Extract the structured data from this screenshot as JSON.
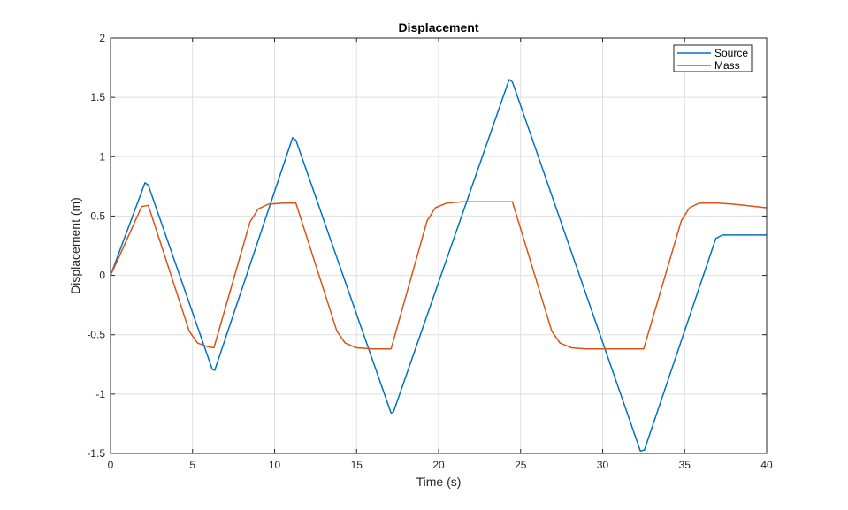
{
  "chart_data": {
    "type": "line",
    "title": "Displacement",
    "xlabel": "Time (s)",
    "ylabel": "Displacement (m)",
    "xlim": [
      0,
      40
    ],
    "ylim": [
      -1.5,
      2
    ],
    "x_ticks": [
      0,
      5,
      10,
      15,
      20,
      25,
      30,
      35,
      40
    ],
    "y_ticks": [
      -1.5,
      -1,
      -0.5,
      0,
      0.5,
      1,
      1.5,
      2
    ],
    "x_tick_labels": [
      "0",
      "5",
      "10",
      "15",
      "20",
      "25",
      "30",
      "35",
      "40"
    ],
    "y_tick_labels": [
      "-1.5",
      "-1",
      "-0.5",
      "0",
      "0.5",
      "1",
      "1.5",
      "2"
    ],
    "grid": true,
    "legend_position": "top-right",
    "series": [
      {
        "name": "Source",
        "color": "#0072BD",
        "x": [
          0,
          2.1,
          2.3,
          6.2,
          6.35,
          11.1,
          11.3,
          17.1,
          17.25,
          24.3,
          24.5,
          32.3,
          32.55,
          36.9,
          37.3,
          40
        ],
        "y": [
          0,
          0.78,
          0.76,
          -0.79,
          -0.8,
          1.16,
          1.14,
          -1.16,
          -1.15,
          1.65,
          1.63,
          -1.48,
          -1.47,
          0.31,
          0.34,
          0.34
        ]
      },
      {
        "name": "Mass",
        "color": "#D95319",
        "x": [
          0,
          0.5,
          1.9,
          2.3,
          4.8,
          5.3,
          5.9,
          6.3,
          8.5,
          9.0,
          9.6,
          10.5,
          11.3,
          13.8,
          14.3,
          15.0,
          16.0,
          17.1,
          19.3,
          19.8,
          20.5,
          21.5,
          24.5,
          26.9,
          27.4,
          28.1,
          29.0,
          32.5,
          34.8,
          35.3,
          35.9,
          37.0,
          38.0,
          40
        ],
        "y": [
          0,
          0.15,
          0.58,
          0.59,
          -0.47,
          -0.57,
          -0.6,
          -0.61,
          0.45,
          0.56,
          0.6,
          0.61,
          0.61,
          -0.47,
          -0.57,
          -0.61,
          -0.62,
          -0.62,
          0.46,
          0.57,
          0.61,
          0.62,
          0.62,
          -0.47,
          -0.57,
          -0.61,
          -0.62,
          -0.62,
          0.46,
          0.57,
          0.61,
          0.61,
          0.6,
          0.57
        ]
      }
    ]
  }
}
